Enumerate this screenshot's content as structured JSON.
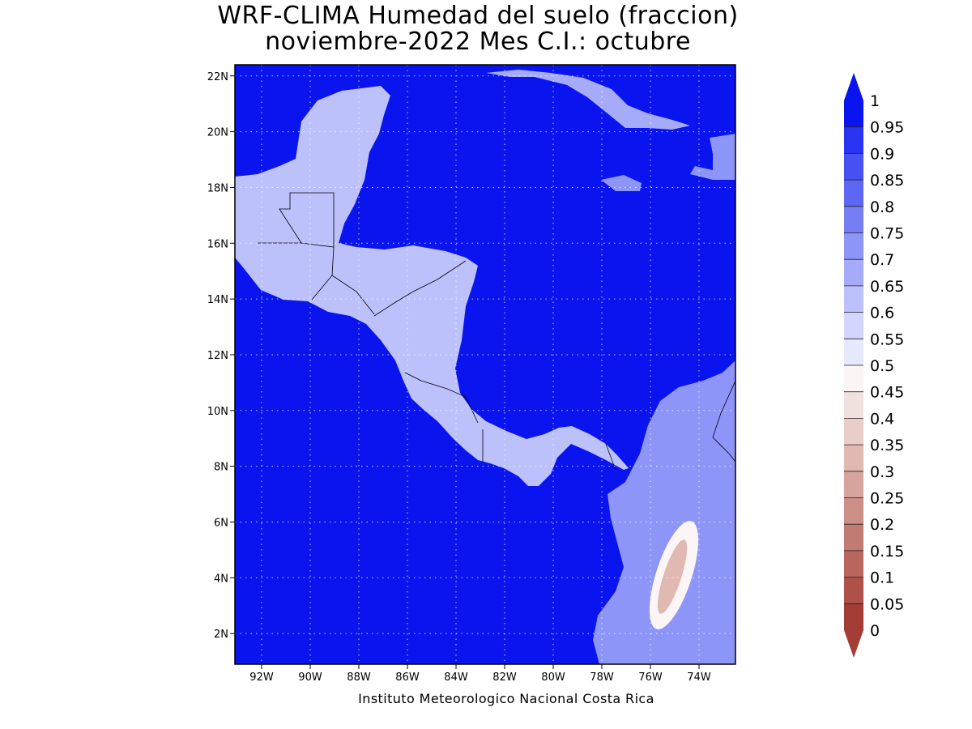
{
  "title": {
    "line1": "WRF-CLIMA Humedad del suelo (fraccion)",
    "line2": "noviembre-2022 Mes C.I.: octubre"
  },
  "map": {
    "x_ticks": [
      "92W",
      "90W",
      "88W",
      "86W",
      "84W",
      "82W",
      "80W",
      "78W",
      "76W",
      "74W"
    ],
    "y_ticks": [
      "22N",
      "20N",
      "18N",
      "16N",
      "14N",
      "12N",
      "10N",
      "8N",
      "6N",
      "4N",
      "2N"
    ],
    "extent": {
      "lon_min": -93.1,
      "lon_max": -72.5,
      "lat_min": 0.9,
      "lat_max": 22.4
    },
    "ocean_color": "#0a14ee",
    "grid_lines": "dotted"
  },
  "colorbar": {
    "labels": [
      "1",
      "0.95",
      "0.9",
      "0.85",
      "0.8",
      "0.75",
      "0.7",
      "0.65",
      "0.6",
      "0.55",
      "0.5",
      "0.45",
      "0.4",
      "0.35",
      "0.3",
      "0.25",
      "0.2",
      "0.15",
      "0.1",
      "0.05",
      "0"
    ],
    "colors": [
      "#0a14ee",
      "#2a33f2",
      "#4650f3",
      "#5e67f4",
      "#767ef6",
      "#8e95f8",
      "#a6abf9",
      "#bcc0fb",
      "#d2d5fc",
      "#e6e8fd",
      "#fbf6f5",
      "#f1e1de",
      "#e9cdc9",
      "#e0b9b3",
      "#d6a49d",
      "#cc8f88",
      "#c27b73",
      "#b8675e",
      "#ae5249",
      "#a43d35"
    ],
    "top_arrow_color": "#0a14ee",
    "bottom_arrow_color": "#a43d35"
  },
  "footer": "Instituto Meteorologico Nacional Costa Rica"
}
